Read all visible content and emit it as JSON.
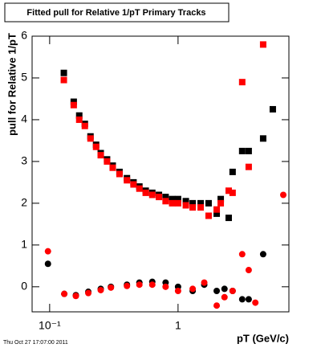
{
  "chart_data": {
    "type": "scatter",
    "title": "Fitted pull for Relative 1/pT  Primary Tracks",
    "y_label": "pull for Relative 1/pT",
    "x_label": "pT (GeV/c)",
    "timestamp": "Thu Oct 27 17:07:00 2011",
    "xlog": true,
    "xlim": [
      0.073,
      7.3
    ],
    "ylim": [
      -0.6,
      6
    ],
    "xticks": [
      {
        "value": 0.1,
        "label": "10⁻¹"
      },
      1
    ],
    "yticks": [
      0,
      1,
      2,
      3,
      4,
      5,
      6
    ],
    "series": [
      {
        "color": "#000000",
        "marker": "square",
        "x": [
          0.129,
          0.154,
          0.17,
          0.188,
          0.208,
          0.23,
          0.25,
          0.28,
          0.31,
          0.35,
          0.4,
          0.45,
          0.5,
          0.56,
          0.63,
          0.71,
          0.8,
          0.9,
          1.0,
          1.15,
          1.3,
          1.5,
          1.73,
          2.0,
          2.15,
          2.48,
          2.66,
          3.16,
          3.55,
          4.6,
          5.47
        ],
        "values": [
          5.12,
          4.43,
          4.1,
          3.9,
          3.6,
          3.4,
          3.2,
          3.05,
          2.9,
          2.75,
          2.6,
          2.5,
          2.4,
          2.3,
          2.25,
          2.2,
          2.15,
          2.1,
          2.1,
          2.05,
          2.0,
          2.0,
          2.0,
          1.75,
          2.1,
          1.65,
          2.75,
          3.25,
          3.25,
          3.55,
          4.25
        ]
      },
      {
        "color": "#ff0000",
        "marker": "square",
        "x": [
          0.129,
          0.154,
          0.17,
          0.188,
          0.208,
          0.23,
          0.25,
          0.28,
          0.31,
          0.35,
          0.4,
          0.45,
          0.5,
          0.56,
          0.63,
          0.71,
          0.8,
          0.9,
          1.0,
          1.15,
          1.3,
          1.5,
          1.73,
          2.0,
          2.15,
          2.48,
          2.66,
          3.16,
          3.55,
          4.6
        ],
        "values": [
          4.95,
          4.35,
          4.0,
          3.85,
          3.55,
          3.35,
          3.15,
          3.0,
          2.85,
          2.7,
          2.55,
          2.45,
          2.35,
          2.25,
          2.2,
          2.15,
          2.05,
          2.0,
          2.0,
          1.95,
          1.9,
          1.9,
          1.7,
          1.85,
          2.0,
          2.3,
          2.25,
          4.9,
          2.87,
          5.8
        ]
      },
      {
        "color": "#000000",
        "marker": "circle",
        "x": [
          0.097,
          0.13,
          0.16,
          0.2,
          0.25,
          0.3,
          0.4,
          0.5,
          0.63,
          0.8,
          1.0,
          1.3,
          1.6,
          2.0,
          2.3,
          2.66,
          3.16,
          3.55,
          4.6
        ],
        "values": [
          0.55,
          -0.17,
          -0.2,
          -0.12,
          -0.05,
          0,
          0.05,
          0.1,
          0.12,
          0.1,
          0,
          -0.1,
          0.05,
          -0.1,
          -0.05,
          -0.1,
          -0.3,
          -0.3,
          0.78
        ]
      },
      {
        "color": "#ff0000",
        "marker": "circle",
        "x": [
          0.097,
          0.13,
          0.16,
          0.2,
          0.25,
          0.3,
          0.4,
          0.5,
          0.63,
          0.8,
          1.0,
          1.3,
          1.6,
          2.0,
          2.3,
          2.66,
          3.16,
          3.55,
          4.0,
          6.6
        ],
        "values": [
          0.85,
          -0.17,
          -0.22,
          -0.15,
          -0.08,
          -0.02,
          0.02,
          0.05,
          0.05,
          0,
          -0.1,
          -0.05,
          0.1,
          -0.45,
          -0.25,
          -0.1,
          0.78,
          0.4,
          -0.38,
          2.2
        ]
      }
    ]
  }
}
